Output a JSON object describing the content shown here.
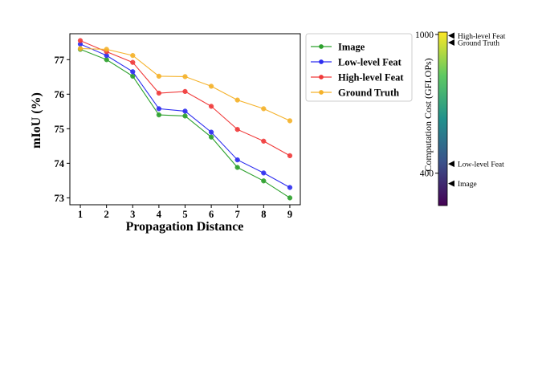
{
  "chart_data": [
    {
      "type": "line",
      "title": "",
      "xlabel": "Propagation Distance",
      "ylabel": "mIoU (%)",
      "x": [
        1,
        2,
        3,
        4,
        5,
        6,
        7,
        8,
        9
      ],
      "xlim": [
        0.6,
        9.4
      ],
      "ylim": [
        72.8,
        77.75
      ],
      "yticks": [
        73,
        74,
        75,
        76,
        77
      ],
      "grid": false,
      "legend_position": "outside-right",
      "series": [
        {
          "name": "Image",
          "color": "#2ca02c",
          "values": [
            77.3,
            77.0,
            76.52,
            75.4,
            75.37,
            74.76,
            73.88,
            73.49,
            73.0
          ]
        },
        {
          "name": "Low-level Feat",
          "color": "#2d2df0",
          "values": [
            77.45,
            77.12,
            76.65,
            75.58,
            75.51,
            74.9,
            74.1,
            73.72,
            73.3
          ]
        },
        {
          "name": "High-level Feat",
          "color": "#f03a3a",
          "values": [
            77.55,
            77.23,
            76.92,
            76.03,
            76.08,
            75.65,
            74.98,
            74.64,
            74.22
          ]
        },
        {
          "name": "Ground Truth",
          "color": "#f5b22a",
          "values": [
            77.32,
            77.3,
            77.12,
            76.52,
            76.51,
            76.23,
            75.83,
            75.58,
            75.23
          ]
        }
      ]
    },
    {
      "type": "colorbar",
      "label": "Computation Cost (GFLOPs)",
      "range": [
        260,
        1010
      ],
      "ticks": [
        400,
        1000
      ],
      "colormap": [
        "#440154",
        "#3b528b",
        "#21918c",
        "#5ec962",
        "#fde725"
      ],
      "annotations": [
        {
          "label": "High-level Feat",
          "value": 995
        },
        {
          "label": "Ground Truth",
          "value": 965
        },
        {
          "label": "Low-level Feat",
          "value": 440
        },
        {
          "label": "Image",
          "value": 355
        }
      ]
    }
  ]
}
